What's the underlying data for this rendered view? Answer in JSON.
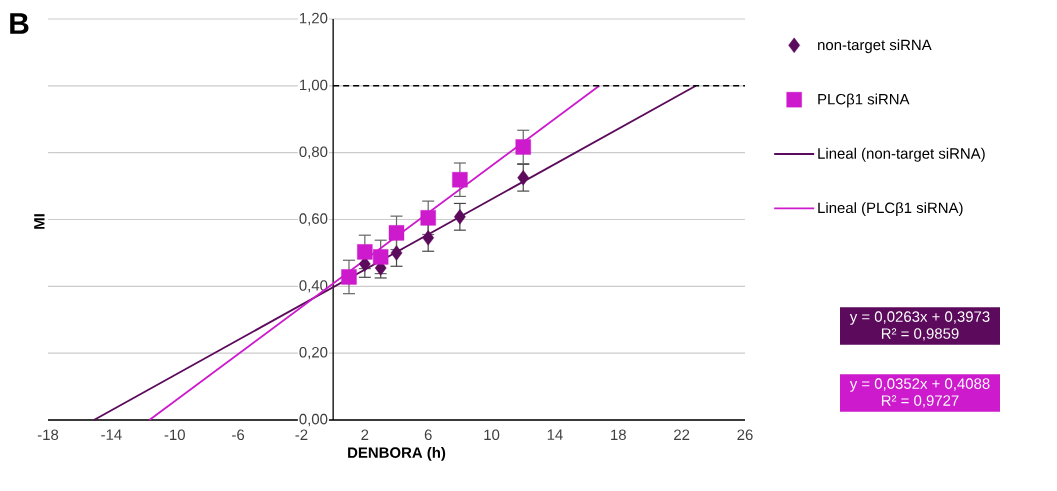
{
  "chart_data": {
    "type": "scatter",
    "title": "B",
    "xlabel": "DENBORA (h)",
    "ylabel": "MI",
    "xlim": [
      -18,
      26
    ],
    "ylim": [
      0,
      1.2
    ],
    "xticks": [
      -18,
      -14,
      -10,
      -6,
      -2,
      2,
      6,
      10,
      14,
      18,
      22,
      26
    ],
    "yticks": [
      {
        "value": 0,
        "label": "0,00"
      },
      {
        "value": 0.2,
        "label": "0,20"
      },
      {
        "value": 0.4,
        "label": "0,40"
      },
      {
        "value": 0.6,
        "label": "0,60"
      },
      {
        "value": 0.8,
        "label": "0,80"
      },
      {
        "value": 1.0,
        "label": "1,00"
      },
      {
        "value": 1.2,
        "label": "1,20"
      }
    ],
    "grid": "y",
    "legend": "right",
    "series": [
      {
        "name": "non-target siRNA",
        "marker": "diamond",
        "color": "#5c0b5c",
        "x": [
          2,
          3,
          4,
          6,
          8,
          12
        ],
        "values": [
          0.467,
          0.455,
          0.5,
          0.545,
          0.608,
          0.725
        ],
        "errors": [
          0.04,
          0.03,
          0.04,
          0.04,
          0.04,
          0.04
        ]
      },
      {
        "name": "PLCβ1 siRNA",
        "marker": "square",
        "color": "#cc1acc",
        "x": [
          1,
          2,
          3,
          4,
          6,
          8,
          12
        ],
        "values": [
          0.428,
          0.503,
          0.488,
          0.56,
          0.605,
          0.719,
          0.817
        ],
        "errors": [
          0.05,
          0.05,
          0.05,
          0.05,
          0.05,
          0.05,
          0.05
        ]
      },
      {
        "name": "Lineal (non-target siRNA)",
        "type": "line",
        "marker": "none",
        "line_style": "solid",
        "color": "#5c0b5c",
        "x": [
          -15.1,
          22.9
        ],
        "values": [
          0,
          1.0
        ]
      },
      {
        "name": "Lineal (PLCβ1 siRNA)",
        "type": "line",
        "marker": "none",
        "line_style": "solid",
        "color": "#cc1acc",
        "x": [
          -11.6,
          16.8
        ],
        "values": [
          0,
          1.0
        ]
      }
    ],
    "ref_lines": [
      {
        "axis": "y",
        "value": 1.0,
        "color": "#000000",
        "line_style": "dashed"
      }
    ],
    "annotations": [
      "y = 0,0263x + 0,3973",
      "R² = 0,9859",
      "y = 0,0352x + 0,4088",
      "R² = 0,9727"
    ]
  }
}
